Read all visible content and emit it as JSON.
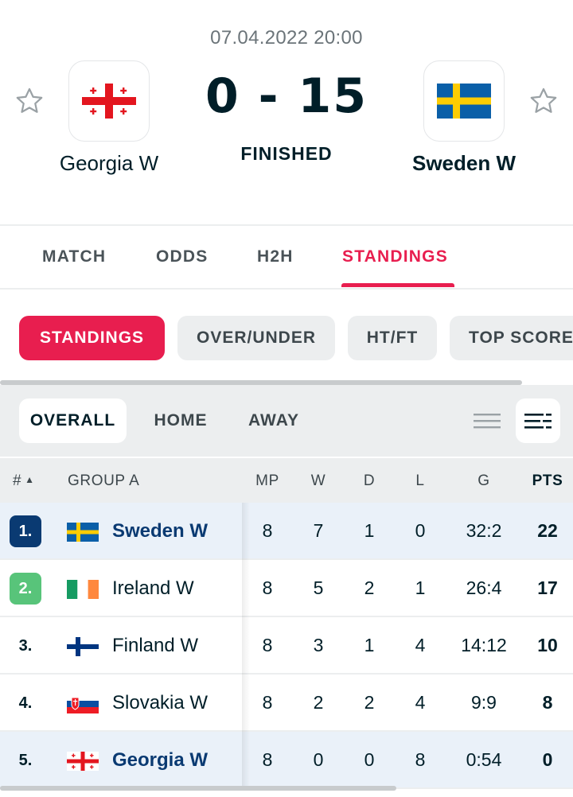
{
  "match": {
    "datetime": "07.04.2022 20:00",
    "score": "0 - 15",
    "status": "FINISHED",
    "home": {
      "name": "Georgia W",
      "flag": "georgia-flag-icon"
    },
    "away": {
      "name": "Sweden W",
      "flag": "sweden-flag-icon"
    }
  },
  "tabs": [
    {
      "label": "MATCH",
      "active": false
    },
    {
      "label": "ODDS",
      "active": false
    },
    {
      "label": "H2H",
      "active": false
    },
    {
      "label": "STANDINGS",
      "active": true
    }
  ],
  "filters": [
    {
      "label": "STANDINGS",
      "active": true
    },
    {
      "label": "OVER/UNDER",
      "active": false
    },
    {
      "label": "HT/FT",
      "active": false
    },
    {
      "label": "TOP SCORE",
      "active": false
    }
  ],
  "subfilters": [
    {
      "label": "OVERALL",
      "active": true
    },
    {
      "label": "HOME",
      "active": false
    },
    {
      "label": "AWAY",
      "active": false
    }
  ],
  "table": {
    "headers": {
      "rank": "#",
      "group": "GROUP A",
      "mp": "MP",
      "w": "W",
      "d": "D",
      "l": "L",
      "g": "G",
      "pts": "PTS"
    },
    "rows": [
      {
        "rank": "1.",
        "team": "Sweden W",
        "flag": "sweden-flag-icon",
        "mp": "8",
        "w": "7",
        "d": "1",
        "l": "0",
        "g": "32:2",
        "pts": "22"
      },
      {
        "rank": "2.",
        "team": "Ireland W",
        "flag": "ireland-flag-icon",
        "mp": "8",
        "w": "5",
        "d": "2",
        "l": "1",
        "g": "26:4",
        "pts": "17"
      },
      {
        "rank": "3.",
        "team": "Finland W",
        "flag": "finland-flag-icon",
        "mp": "8",
        "w": "3",
        "d": "1",
        "l": "4",
        "g": "14:12",
        "pts": "10"
      },
      {
        "rank": "4.",
        "team": "Slovakia W",
        "flag": "slovakia-flag-icon",
        "mp": "8",
        "w": "2",
        "d": "2",
        "l": "4",
        "g": "9:9",
        "pts": "8"
      },
      {
        "rank": "5.",
        "team": "Georgia W",
        "flag": "georgia-flag-icon",
        "mp": "8",
        "w": "0",
        "d": "0",
        "l": "8",
        "g": "0:54",
        "pts": "0"
      }
    ]
  },
  "colors": {
    "accent": "#e81e4f",
    "highlight_row": "#eaf1f9",
    "rank_qualify_1": "#0a3a72",
    "rank_qualify_2": "#58c47a"
  }
}
